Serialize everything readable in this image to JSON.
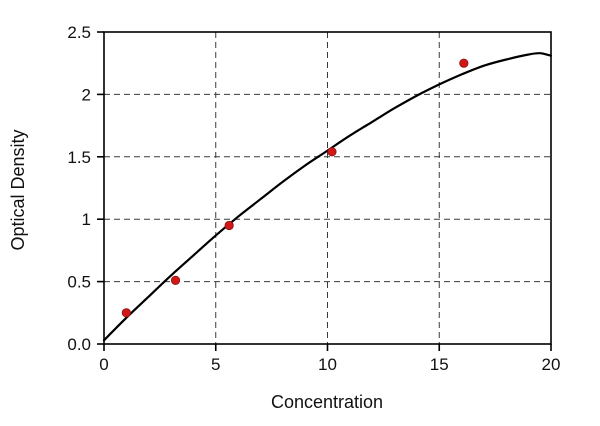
{
  "figure": {
    "background": "#ffffff",
    "axis_color": "#000000",
    "grid_color": "#3a3a3a",
    "text_color": "#111111"
  },
  "chart_data": {
    "type": "scatter",
    "title": "",
    "xlabel": "Concentration",
    "ylabel": "Optical Density",
    "xlim": [
      0,
      20
    ],
    "ylim": [
      0,
      2.5
    ],
    "grid": true,
    "legend": false,
    "x_ticks": [
      0,
      5,
      10,
      15,
      20
    ],
    "x_tick_labels": [
      "0",
      "5",
      "10",
      "15",
      "20"
    ],
    "y_ticks": [
      0,
      0.5,
      1,
      1.5,
      2,
      2.5
    ],
    "y_tick_labels": [
      "0.0",
      "0.5",
      "1",
      "1.5",
      "2",
      "2.5"
    ],
    "grid_x": [
      5,
      10,
      15
    ],
    "grid_y": [
      0.5,
      1,
      1.5,
      2
    ],
    "points": [
      [
        1.0,
        0.25
      ],
      [
        3.2,
        0.51
      ],
      [
        5.6,
        0.95
      ],
      [
        10.2,
        1.54
      ],
      [
        16.1,
        2.25
      ]
    ],
    "fit_curve": [
      [
        0,
        0.03
      ],
      [
        1,
        0.21
      ],
      [
        2,
        0.38
      ],
      [
        3,
        0.55
      ],
      [
        4,
        0.71
      ],
      [
        5,
        0.87
      ],
      [
        6,
        1.02
      ],
      [
        7,
        1.16
      ],
      [
        8,
        1.3
      ],
      [
        9,
        1.43
      ],
      [
        10,
        1.55
      ],
      [
        11,
        1.67
      ],
      [
        12,
        1.78
      ],
      [
        13,
        1.89
      ],
      [
        14,
        1.99
      ],
      [
        15,
        2.08
      ],
      [
        16,
        2.16
      ],
      [
        17,
        2.23
      ],
      [
        18,
        2.28
      ],
      [
        19,
        2.32
      ],
      [
        19.5,
        2.33
      ],
      [
        20,
        2.31
      ]
    ],
    "point_color": "#d01818",
    "point_edge_color": "#8f1010",
    "curve_color": "#000000"
  }
}
